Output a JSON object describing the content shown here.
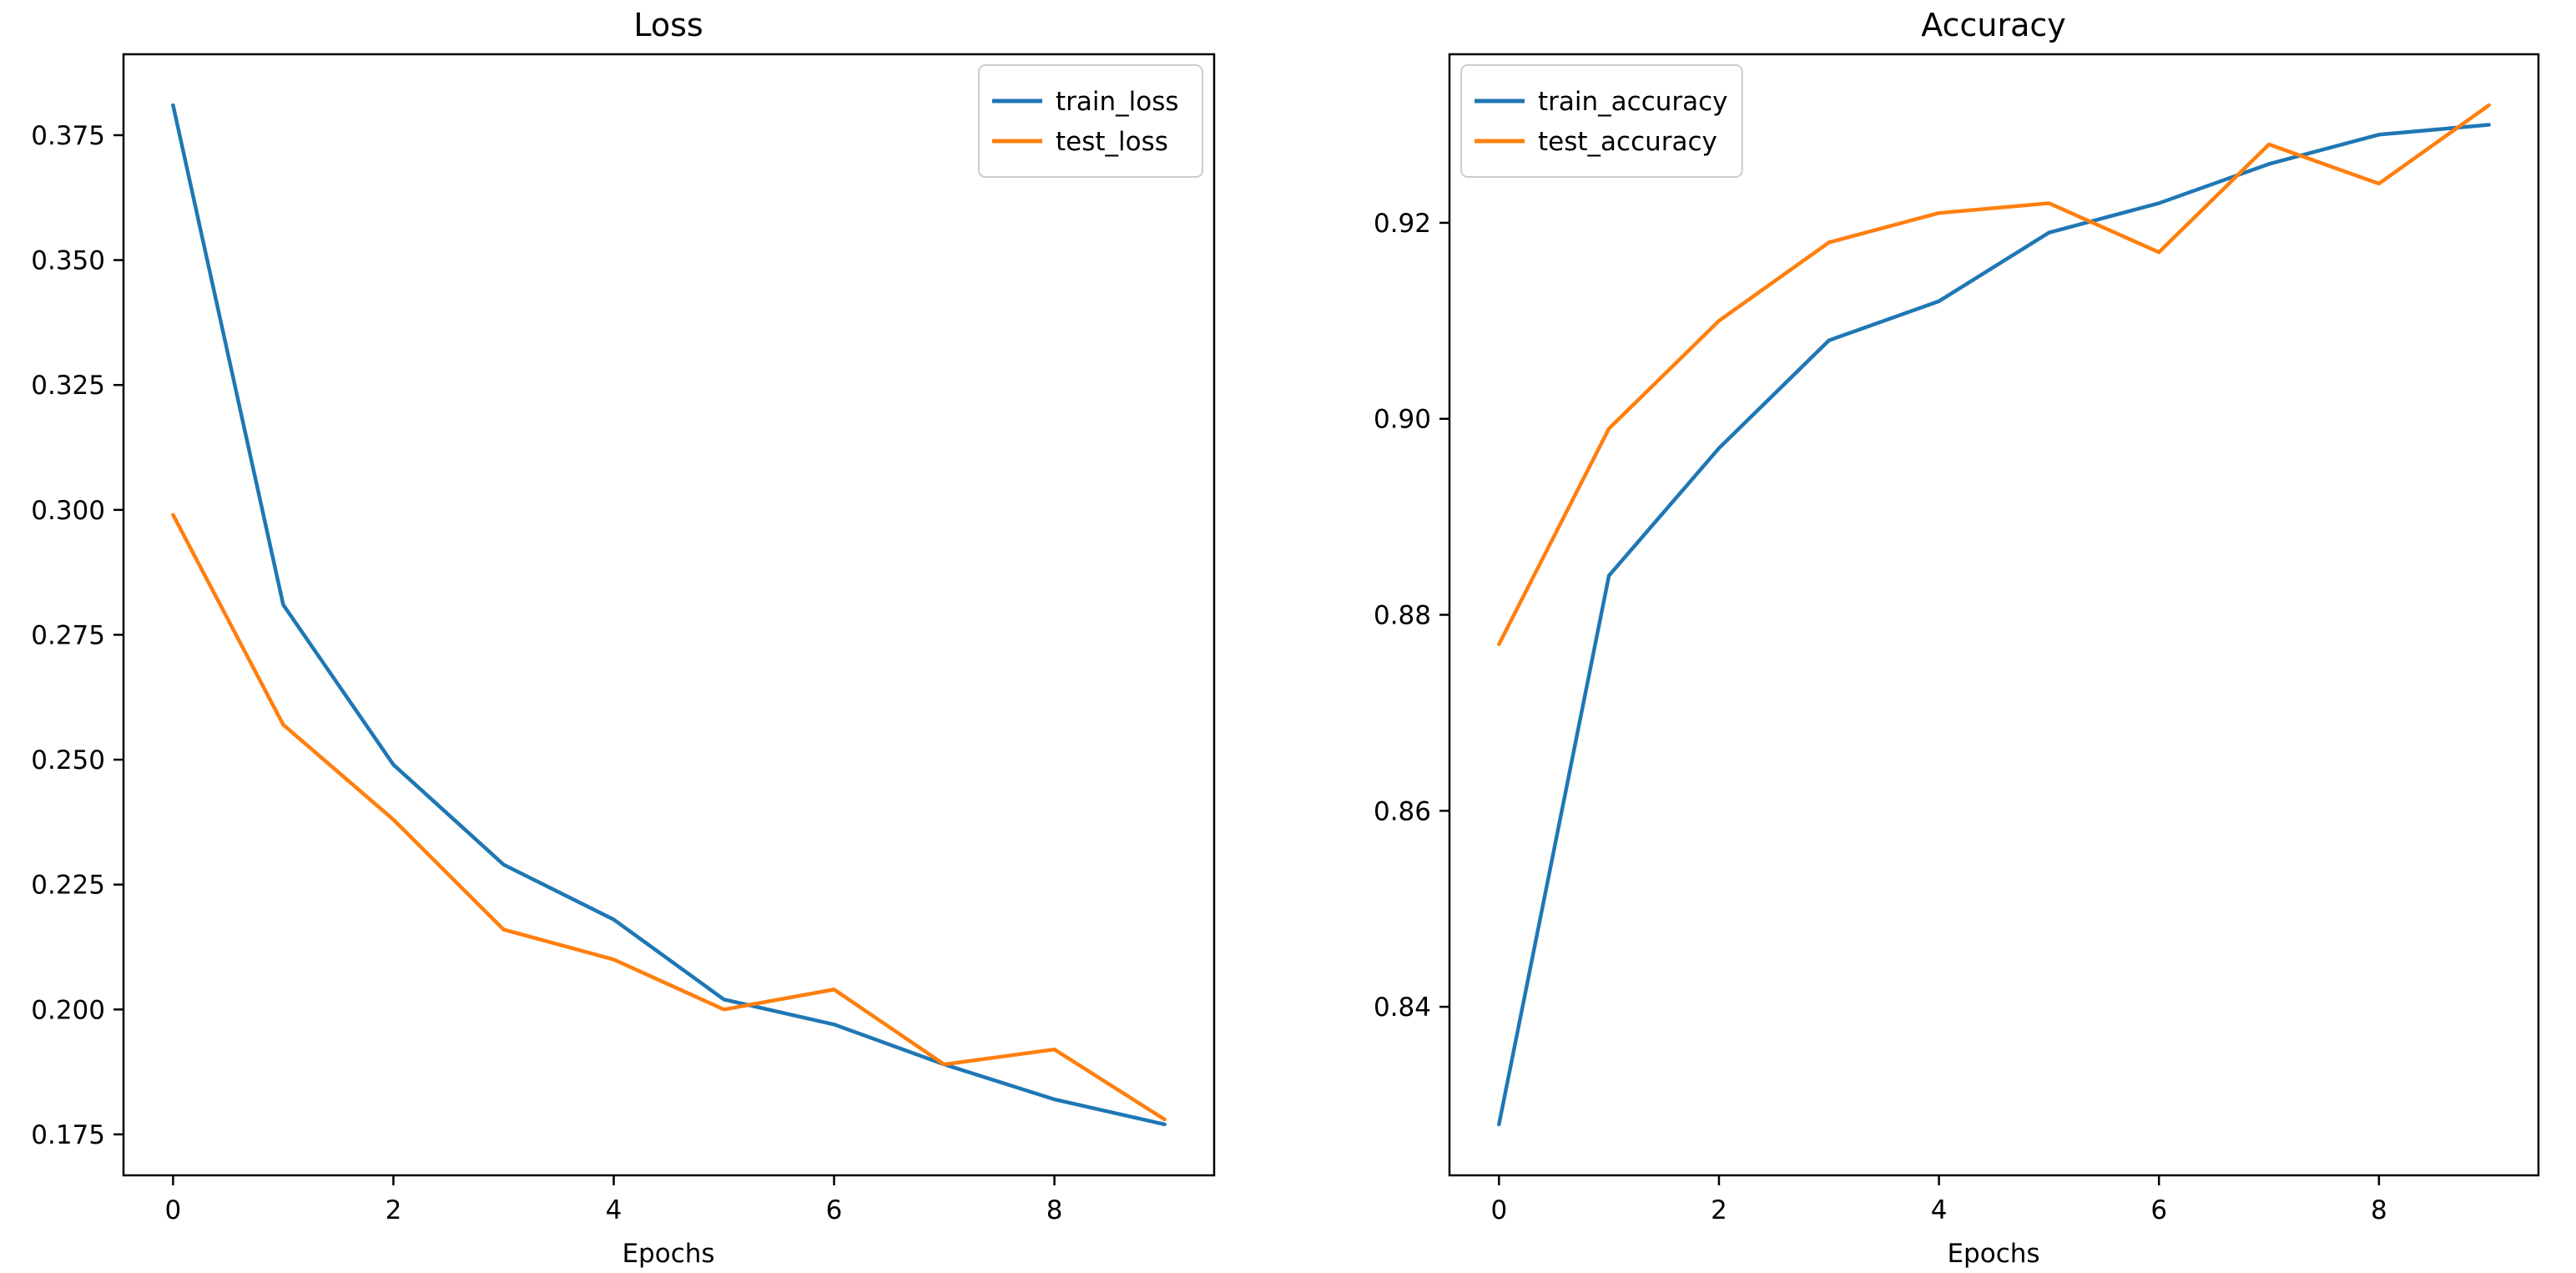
{
  "figure": {
    "background_color": "#ffffff",
    "text_color": "#000000",
    "axes_color": "#000000",
    "legend_border_color": "#cccccc",
    "legend_background": "#ffffff"
  },
  "chart_data": [
    {
      "id": "loss",
      "type": "line",
      "title": "Loss",
      "xlabel": "Epochs",
      "ylabel": "",
      "x": [
        0,
        1,
        2,
        3,
        4,
        5,
        6,
        7,
        8,
        9
      ],
      "series": [
        {
          "name": "train_loss",
          "color": "#1f77b4",
          "values": [
            0.381,
            0.281,
            0.249,
            0.229,
            0.218,
            0.202,
            0.197,
            0.189,
            0.182,
            0.177
          ]
        },
        {
          "name": "test_loss",
          "color": "#ff7f0e",
          "values": [
            0.299,
            0.257,
            0.238,
            0.216,
            0.21,
            0.2,
            0.204,
            0.189,
            0.192,
            0.178
          ]
        }
      ],
      "xticks": [
        0,
        2,
        4,
        6,
        8
      ],
      "xtick_labels": [
        "0",
        "2",
        "4",
        "6",
        "8"
      ],
      "yticks": [
        0.175,
        0.2,
        0.225,
        0.25,
        0.275,
        0.3,
        0.325,
        0.35,
        0.375
      ],
      "ytick_labels": [
        "0.175",
        "0.200",
        "0.225",
        "0.250",
        "0.275",
        "0.300",
        "0.325",
        "0.350",
        "0.375"
      ],
      "xlim": [
        -0.45,
        9.45
      ],
      "ylim": [
        0.1668,
        0.3912
      ],
      "grid": false,
      "legend_position": "upper-right",
      "legend_labels": [
        "train_loss",
        "test_loss"
      ]
    },
    {
      "id": "accuracy",
      "type": "line",
      "title": "Accuracy",
      "xlabel": "Epochs",
      "ylabel": "",
      "x": [
        0,
        1,
        2,
        3,
        4,
        5,
        6,
        7,
        8,
        9
      ],
      "series": [
        {
          "name": "train_accuracy",
          "color": "#1f77b4",
          "values": [
            0.828,
            0.884,
            0.897,
            0.908,
            0.912,
            0.919,
            0.922,
            0.926,
            0.929,
            0.93
          ]
        },
        {
          "name": "test_accuracy",
          "color": "#ff7f0e",
          "values": [
            0.877,
            0.899,
            0.91,
            0.918,
            0.921,
            0.922,
            0.917,
            0.928,
            0.924,
            0.932
          ]
        }
      ],
      "xticks": [
        0,
        2,
        4,
        6,
        8
      ],
      "xtick_labels": [
        "0",
        "2",
        "4",
        "6",
        "8"
      ],
      "yticks": [
        0.84,
        0.86,
        0.88,
        0.9,
        0.92
      ],
      "ytick_labels": [
        "0.84",
        "0.86",
        "0.88",
        "0.90",
        "0.92"
      ],
      "xlim": [
        -0.45,
        9.45
      ],
      "ylim": [
        0.8228,
        0.9372
      ],
      "grid": false,
      "legend_position": "upper-left",
      "legend_labels": [
        "train_accuracy",
        "test_accuracy"
      ]
    }
  ]
}
